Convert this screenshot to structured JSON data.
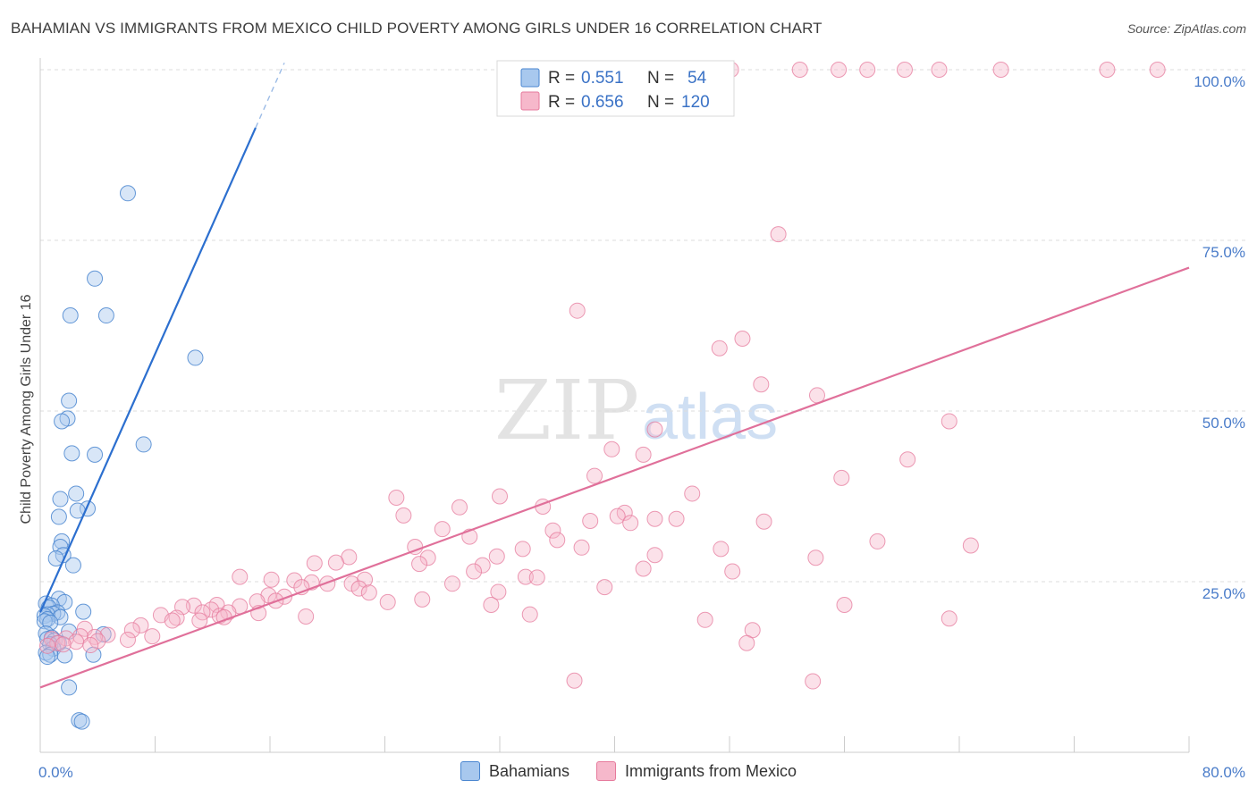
{
  "title": "BAHAMIAN VS IMMIGRANTS FROM MEXICO CHILD POVERTY AMONG GIRLS UNDER 16 CORRELATION CHART",
  "source": "Source: ZipAtlas.com",
  "watermark": {
    "zip": "ZIP",
    "atlas": "atlas"
  },
  "colors": {
    "blue_fill": "#a8c8ee",
    "blue_stroke": "#4a86d0",
    "blue_line": "#2c6fcf",
    "pink_fill": "#f6b8cb",
    "pink_stroke": "#e67a9c",
    "pink_line": "#e0709a"
  },
  "stats": {
    "r_label": "R =",
    "n_label": "N =",
    "blue": {
      "r": "0.551",
      "n": "54"
    },
    "pink": {
      "r": "0.656",
      "n": "120"
    }
  },
  "legend": {
    "blue": "Bahamians",
    "pink": "Immigrants from Mexico"
  },
  "chart_data": {
    "type": "scatter",
    "title": "BAHAMIAN VS IMMIGRANTS FROM MEXICO CHILD POVERTY AMONG GIRLS UNDER 16 CORRELATION CHART",
    "xlabel": "",
    "ylabel": "Child Poverty Among Girls Under 16",
    "xlim": [
      0,
      80
    ],
    "ylim": [
      0,
      102
    ],
    "x_tick_labels": [
      {
        "value": 0,
        "label": "0.0%"
      },
      {
        "value": 80,
        "label": "80.0%"
      }
    ],
    "y_tick_labels": [
      {
        "value": 25,
        "label": "25.0%"
      },
      {
        "value": 50,
        "label": "50.0%"
      },
      {
        "value": 75,
        "label": "75.0%"
      },
      {
        "value": 100,
        "label": "100.0%"
      }
    ],
    "series": [
      {
        "name": "Bahamians",
        "r": 0.551,
        "n": 54,
        "trend": {
          "x0": 0,
          "y0": 20.5,
          "x1": 15,
          "y1": 91.5,
          "dash_to_x": 17,
          "dash_to_y": 101
        },
        "points": [
          [
            6.1,
            81.9
          ],
          [
            3.8,
            69.4
          ],
          [
            2.1,
            64.0
          ],
          [
            4.6,
            64.0
          ],
          [
            10.8,
            57.8
          ],
          [
            2.0,
            51.5
          ],
          [
            1.9,
            48.9
          ],
          [
            1.5,
            48.5
          ],
          [
            7.2,
            45.1
          ],
          [
            2.2,
            43.8
          ],
          [
            3.8,
            43.6
          ],
          [
            2.5,
            37.9
          ],
          [
            1.4,
            37.1
          ],
          [
            3.3,
            35.7
          ],
          [
            2.6,
            35.4
          ],
          [
            1.3,
            34.5
          ],
          [
            1.5,
            30.9
          ],
          [
            1.4,
            30.1
          ],
          [
            1.6,
            28.9
          ],
          [
            1.1,
            28.4
          ],
          [
            2.3,
            27.4
          ],
          [
            1.3,
            22.5
          ],
          [
            1.7,
            22.0
          ],
          [
            0.4,
            21.8
          ],
          [
            0.8,
            21.5
          ],
          [
            0.6,
            21.2
          ],
          [
            3.0,
            20.6
          ],
          [
            1.2,
            20.5
          ],
          [
            0.9,
            20.3
          ],
          [
            0.5,
            20.2
          ],
          [
            0.3,
            20.0
          ],
          [
            1.4,
            19.8
          ],
          [
            0.5,
            19.5
          ],
          [
            0.3,
            19.2
          ],
          [
            0.7,
            19.0
          ],
          [
            2.0,
            17.7
          ],
          [
            0.4,
            17.4
          ],
          [
            4.4,
            17.3
          ],
          [
            0.8,
            16.8
          ],
          [
            0.5,
            16.6
          ],
          [
            1.0,
            16.4
          ],
          [
            1.3,
            16.0
          ],
          [
            0.7,
            15.8
          ],
          [
            0.9,
            15.2
          ],
          [
            0.4,
            14.6
          ],
          [
            1.7,
            14.2
          ],
          [
            0.7,
            14.3
          ],
          [
            3.7,
            14.3
          ],
          [
            0.5,
            14.0
          ],
          [
            2.0,
            9.5
          ],
          [
            2.7,
            4.7
          ],
          [
            2.9,
            4.5
          ]
        ]
      },
      {
        "name": "Immigrants from Mexico",
        "r": 0.656,
        "n": 120,
        "trend": {
          "x0": 0,
          "y0": 9.5,
          "x1": 80,
          "y1": 71.0
        },
        "points": [
          [
            48.1,
            100
          ],
          [
            52.9,
            100
          ],
          [
            55.6,
            100
          ],
          [
            57.6,
            100
          ],
          [
            60.2,
            100
          ],
          [
            62.6,
            100
          ],
          [
            66.9,
            100
          ],
          [
            74.3,
            100
          ],
          [
            77.8,
            100
          ],
          [
            51.4,
            75.9
          ],
          [
            37.4,
            64.7
          ],
          [
            48.9,
            60.6
          ],
          [
            47.3,
            59.2
          ],
          [
            50.2,
            53.9
          ],
          [
            54.1,
            52.3
          ],
          [
            63.3,
            48.5
          ],
          [
            42.8,
            47.3
          ],
          [
            39.8,
            44.4
          ],
          [
            42.0,
            43.6
          ],
          [
            60.4,
            42.9
          ],
          [
            38.6,
            40.5
          ],
          [
            55.8,
            40.2
          ],
          [
            45.4,
            37.9
          ],
          [
            32.0,
            37.5
          ],
          [
            24.8,
            37.3
          ],
          [
            29.2,
            35.9
          ],
          [
            35.0,
            36.0
          ],
          [
            40.7,
            35.1
          ],
          [
            40.2,
            34.6
          ],
          [
            25.3,
            34.7
          ],
          [
            42.8,
            34.2
          ],
          [
            44.3,
            34.2
          ],
          [
            38.3,
            33.9
          ],
          [
            50.4,
            33.8
          ],
          [
            41.1,
            33.6
          ],
          [
            28.0,
            32.7
          ],
          [
            35.7,
            32.5
          ],
          [
            29.9,
            31.6
          ],
          [
            36.0,
            31.1
          ],
          [
            58.3,
            30.9
          ],
          [
            64.8,
            30.3
          ],
          [
            26.1,
            30.1
          ],
          [
            37.7,
            30.0
          ],
          [
            33.6,
            29.8
          ],
          [
            47.4,
            29.8
          ],
          [
            21.5,
            28.6
          ],
          [
            27.0,
            28.5
          ],
          [
            31.8,
            28.7
          ],
          [
            42.8,
            28.9
          ],
          [
            54.0,
            28.5
          ],
          [
            20.6,
            27.8
          ],
          [
            19.1,
            27.7
          ],
          [
            26.4,
            27.6
          ],
          [
            30.8,
            27.4
          ],
          [
            42.0,
            26.9
          ],
          [
            30.2,
            26.5
          ],
          [
            48.2,
            26.5
          ],
          [
            16.1,
            25.3
          ],
          [
            22.6,
            25.3
          ],
          [
            33.8,
            25.7
          ],
          [
            34.6,
            25.6
          ],
          [
            13.9,
            25.7
          ],
          [
            17.7,
            25.2
          ],
          [
            18.9,
            24.9
          ],
          [
            20.0,
            24.7
          ],
          [
            21.7,
            24.7
          ],
          [
            28.7,
            24.7
          ],
          [
            18.2,
            24.2
          ],
          [
            22.2,
            24.0
          ],
          [
            39.3,
            24.2
          ],
          [
            22.9,
            23.4
          ],
          [
            31.9,
            23.5
          ],
          [
            15.9,
            23.0
          ],
          [
            17.0,
            22.8
          ],
          [
            26.6,
            22.4
          ],
          [
            16.4,
            22.2
          ],
          [
            15.1,
            22.1
          ],
          [
            24.2,
            22.0
          ],
          [
            12.3,
            21.6
          ],
          [
            10.7,
            21.5
          ],
          [
            9.9,
            21.3
          ],
          [
            31.4,
            21.6
          ],
          [
            13.9,
            21.4
          ],
          [
            56.0,
            21.6
          ],
          [
            11.9,
            20.9
          ],
          [
            11.3,
            20.5
          ],
          [
            13.1,
            20.5
          ],
          [
            15.2,
            20.4
          ],
          [
            8.4,
            20.1
          ],
          [
            12.5,
            20.0
          ],
          [
            18.5,
            19.9
          ],
          [
            9.5,
            19.7
          ],
          [
            9.2,
            19.3
          ],
          [
            34.1,
            20.2
          ],
          [
            46.3,
            19.4
          ],
          [
            63.3,
            19.6
          ],
          [
            12.8,
            19.8
          ],
          [
            11.1,
            19.3
          ],
          [
            7.0,
            18.6
          ],
          [
            6.4,
            17.9
          ],
          [
            3.1,
            18.1
          ],
          [
            4.7,
            17.2
          ],
          [
            7.8,
            17.0
          ],
          [
            2.8,
            17.0
          ],
          [
            3.8,
            16.9
          ],
          [
            1.8,
            16.7
          ],
          [
            0.8,
            16.6
          ],
          [
            6.1,
            16.5
          ],
          [
            4.0,
            16.3
          ],
          [
            2.5,
            16.2
          ],
          [
            1.2,
            16.0
          ],
          [
            1.6,
            15.8
          ],
          [
            3.5,
            15.7
          ],
          [
            0.5,
            15.6
          ],
          [
            49.6,
            17.9
          ],
          [
            49.2,
            16.0
          ],
          [
            37.2,
            10.5
          ],
          [
            53.8,
            10.4
          ]
        ]
      }
    ]
  }
}
